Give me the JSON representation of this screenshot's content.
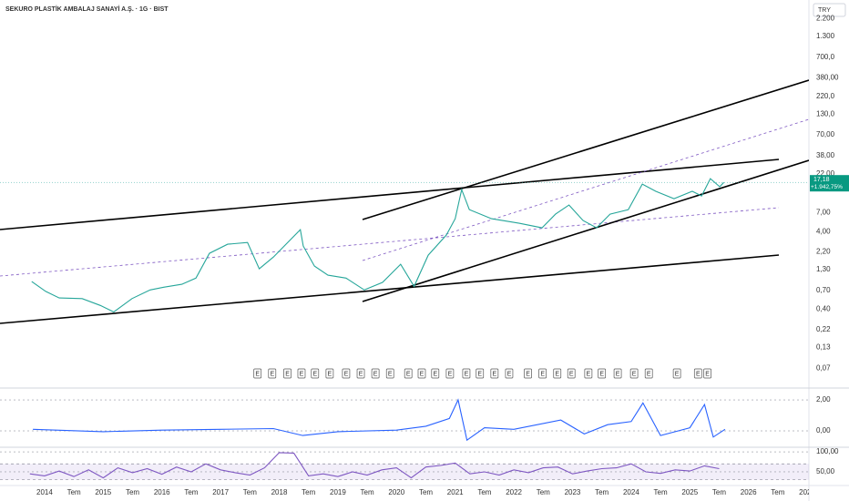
{
  "chart_data": [
    {
      "type": "line",
      "title": "SEKURO PLASTİK AMBALAJ SANAYİ A.Ş. · 1G · BIST",
      "currency": "TRY",
      "log_scale": true,
      "color": "#26a69a",
      "x": [
        2013.78,
        2014.02,
        2014.25,
        2014.64,
        2014.95,
        2015.18,
        2015.49,
        2015.8,
        2016.03,
        2016.34,
        2016.58,
        2016.81,
        2017.12,
        2017.46,
        2017.66,
        2017.9,
        2018.36,
        2018.41,
        2018.6,
        2018.83,
        2019.14,
        2019.45,
        2019.76,
        2020.07,
        2020.3,
        2020.54,
        2020.85,
        2021.0,
        2021.11,
        2021.24,
        2021.62,
        2022.09,
        2022.48,
        2022.71,
        2022.94,
        2023.18,
        2023.41,
        2023.64,
        2023.95,
        2024.19,
        2024.42,
        2024.73,
        2025.04,
        2025.2,
        2025.35,
        2025.51,
        2025.58
      ],
      "values": [
        0.91,
        0.68,
        0.56,
        0.55,
        0.45,
        0.37,
        0.55,
        0.71,
        0.77,
        0.84,
        1.01,
        2.1,
        2.75,
        2.9,
        1.33,
        1.88,
        4.24,
        2.61,
        1.44,
        1.1,
        1.01,
        0.71,
        0.89,
        1.52,
        0.79,
        1.99,
        3.61,
        5.86,
        13.9,
        7.67,
        5.86,
        5.12,
        4.47,
        6.7,
        8.77,
        5.55,
        4.47,
        6.7,
        7.67,
        16.3,
        13.2,
        10.6,
        13.2,
        11.5,
        19.2,
        15.1,
        17.18
      ],
      "last_price": {
        "value": 17.18,
        "label": "17,18"
      },
      "change": {
        "value": 1942.75,
        "label": "+1.942,75%"
      },
      "xlim": [
        2013.24,
        2027.03
      ],
      "ylim": [
        0.04,
        3800
      ],
      "yticks": [
        {
          "value": 2200,
          "label": "2.200"
        },
        {
          "value": 1300,
          "label": "1.300"
        },
        {
          "value": 700,
          "label": "700,0"
        },
        {
          "value": 380,
          "label": "380,00"
        },
        {
          "value": 220,
          "label": "220,0"
        },
        {
          "value": 130,
          "label": "130,0"
        },
        {
          "value": 70,
          "label": "70,00"
        },
        {
          "value": 38,
          "label": "38,00"
        },
        {
          "value": 22,
          "label": "22,00"
        },
        {
          "value": 7,
          "label": "7,00"
        },
        {
          "value": 4,
          "label": "4,00"
        },
        {
          "value": 2.2,
          "label": "2,20"
        },
        {
          "value": 1.3,
          "label": "1,30"
        },
        {
          "value": 0.7,
          "label": "0,70"
        },
        {
          "value": 0.4,
          "label": "0,40"
        },
        {
          "value": 0.22,
          "label": "0,22"
        },
        {
          "value": 0.13,
          "label": "0,13"
        },
        {
          "value": 0.07,
          "label": "0,07"
        }
      ],
      "xticks": [
        2014,
        {
          "value": 2014.5,
          "label": "Tem"
        },
        2015,
        {
          "value": 2015.5,
          "label": "Tem"
        },
        2016,
        {
          "value": 2016.5,
          "label": "Tem"
        },
        2017,
        {
          "value": 2017.5,
          "label": "Tem"
        },
        2018,
        {
          "value": 2018.5,
          "label": "Tem"
        },
        2019,
        {
          "value": 2019.5,
          "label": "Tem"
        },
        2020,
        {
          "value": 2020.5,
          "label": "Tem"
        },
        2021,
        {
          "value": 2021.5,
          "label": "Tem"
        },
        2022,
        {
          "value": 2022.5,
          "label": "Tem"
        },
        2023,
        {
          "value": 2023.5,
          "label": "Tem"
        },
        2024,
        {
          "value": 2024.5,
          "label": "Tem"
        },
        2025,
        {
          "value": 2025.5,
          "label": "Tem"
        },
        2026,
        {
          "value": 2026.5,
          "label": "Tem"
        },
        2027
      ],
      "events": [
        {
          "x": 2017.63,
          "label": "E"
        },
        {
          "x": 2017.88,
          "label": "E"
        },
        {
          "x": 2018.14,
          "label": "E"
        },
        {
          "x": 2018.38,
          "label": "E"
        },
        {
          "x": 2018.61,
          "label": "E"
        },
        {
          "x": 2018.86,
          "label": "E"
        },
        {
          "x": 2019.14,
          "label": "E"
        },
        {
          "x": 2019.39,
          "label": "E"
        },
        {
          "x": 2019.64,
          "label": "E"
        },
        {
          "x": 2019.89,
          "label": "E"
        },
        {
          "x": 2020.2,
          "label": "E"
        },
        {
          "x": 2020.43,
          "label": "E"
        },
        {
          "x": 2020.66,
          "label": "E"
        },
        {
          "x": 2020.91,
          "label": "E"
        },
        {
          "x": 2021.19,
          "label": "E"
        },
        {
          "x": 2021.42,
          "label": "E"
        },
        {
          "x": 2021.67,
          "label": "E"
        },
        {
          "x": 2021.92,
          "label": "E"
        },
        {
          "x": 2022.24,
          "label": "E"
        },
        {
          "x": 2022.49,
          "label": "E"
        },
        {
          "x": 2022.74,
          "label": "E"
        },
        {
          "x": 2022.98,
          "label": "E"
        },
        {
          "x": 2023.27,
          "label": "E"
        },
        {
          "x": 2023.5,
          "label": "E"
        },
        {
          "x": 2023.77,
          "label": "E"
        },
        {
          "x": 2024.05,
          "label": "E"
        },
        {
          "x": 2024.3,
          "label": "E"
        },
        {
          "x": 2024.78,
          "label": "E"
        },
        {
          "x": 2025.14,
          "label": "E"
        },
        {
          "x": 2025.3,
          "label": "E"
        }
      ]
    },
    {
      "type": "line",
      "color": "#2962ff",
      "x": [
        2013.8,
        2015,
        2016,
        2017,
        2017.9,
        2018.4,
        2019,
        2020,
        2020.5,
        2020.9,
        2021.05,
        2021.2,
        2021.5,
        2022,
        2022.8,
        2023.2,
        2023.6,
        2024.0,
        2024.2,
        2024.5,
        2025.0,
        2025.25,
        2025.4,
        2025.6
      ],
      "values": [
        0.1,
        -0.05,
        0.05,
        0.1,
        0.15,
        -0.3,
        -0.05,
        0.05,
        0.3,
        0.8,
        2.0,
        -0.6,
        0.2,
        0.1,
        0.7,
        -0.2,
        0.4,
        0.6,
        1.8,
        -0.3,
        0.2,
        1.7,
        -0.4,
        0.1
      ],
      "xlim": [
        2013.24,
        2027.03
      ],
      "ylim": [
        -1.0,
        2.65
      ],
      "yticks": [
        {
          "value": 2,
          "label": "2,00"
        },
        {
          "value": 0,
          "label": "0,00"
        }
      ]
    },
    {
      "type": "line",
      "color": "#7e57c2",
      "band": [
        30,
        70
      ],
      "x": [
        2013.75,
        2014,
        2014.25,
        2014.5,
        2014.75,
        2015,
        2015.25,
        2015.5,
        2015.75,
        2016,
        2016.25,
        2016.5,
        2016.75,
        2017,
        2017.25,
        2017.5,
        2017.75,
        2018,
        2018.25,
        2018.5,
        2018.75,
        2019,
        2019.25,
        2019.5,
        2019.75,
        2020,
        2020.25,
        2020.5,
        2020.75,
        2021,
        2021.25,
        2021.5,
        2021.75,
        2022,
        2022.25,
        2022.5,
        2022.75,
        2023,
        2023.25,
        2023.5,
        2023.75,
        2024,
        2024.25,
        2024.5,
        2024.75,
        2025,
        2025.25,
        2025.5
      ],
      "values": [
        45,
        40,
        52,
        38,
        55,
        35,
        60,
        48,
        58,
        44,
        62,
        50,
        70,
        55,
        48,
        42,
        60,
        98,
        97,
        40,
        45,
        38,
        50,
        42,
        55,
        60,
        35,
        62,
        66,
        72,
        45,
        50,
        42,
        55,
        48,
        60,
        62,
        45,
        52,
        58,
        60,
        70,
        50,
        46,
        55,
        52,
        65,
        58
      ],
      "xlim": [
        2013.24,
        2027.03
      ],
      "ylim": [
        18,
        107
      ],
      "yticks": [
        {
          "value": 100,
          "label": "100,00"
        },
        {
          "value": 50,
          "label": "50,00"
        }
      ]
    }
  ]
}
